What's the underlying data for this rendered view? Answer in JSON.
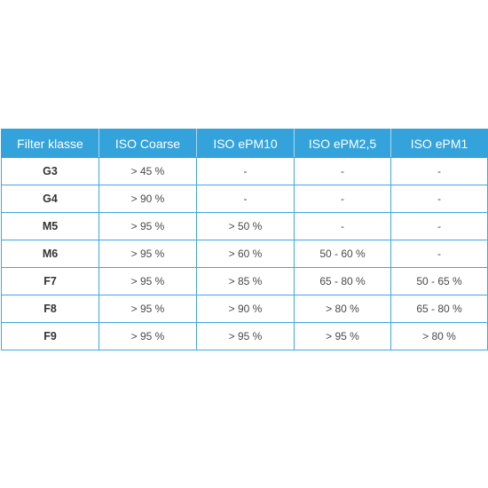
{
  "table": {
    "headers": [
      "Filter klasse",
      "ISO Coarse",
      "ISO ePM10",
      "ISO ePM2,5",
      "ISO ePM1"
    ],
    "rows": [
      [
        "G3",
        "> 45 %",
        "-",
        "-",
        "-"
      ],
      [
        "G4",
        "> 90 %",
        "-",
        "-",
        "-"
      ],
      [
        "M5",
        "> 95 %",
        "> 50 %",
        "-",
        "-"
      ],
      [
        "M6",
        "> 95 %",
        "> 60 %",
        "50 - 60 %",
        "-"
      ],
      [
        "F7",
        "> 95 %",
        "> 85 %",
        "65 - 80 %",
        "50 - 65 %"
      ],
      [
        "F8",
        "> 95 %",
        "> 90 %",
        "> 80 %",
        "65 - 80 %"
      ],
      [
        "F9",
        "> 95 %",
        "> 95 %",
        "> 95 %",
        "> 80 %"
      ]
    ]
  },
  "colors": {
    "header_bg": "#34a3dc",
    "header_text": "#ffffff",
    "border": "#3fa7dd"
  }
}
